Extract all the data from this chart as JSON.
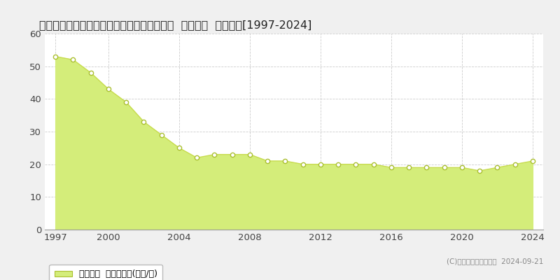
{
  "title": "兵庫県神戸市北区ひよどり台１丁目１１番４  基準地価  地価推移[1997-2024]",
  "years": [
    1997,
    1998,
    1999,
    2000,
    2001,
    2002,
    2003,
    2004,
    2005,
    2006,
    2007,
    2008,
    2009,
    2010,
    2011,
    2012,
    2013,
    2014,
    2015,
    2016,
    2017,
    2018,
    2019,
    2020,
    2021,
    2022,
    2023,
    2024
  ],
  "values": [
    53,
    52,
    48,
    43,
    39,
    33,
    29,
    25,
    22,
    23,
    23,
    23,
    21,
    21,
    20,
    20,
    20,
    20,
    20,
    19,
    19,
    19,
    19,
    19,
    18,
    19,
    20,
    21
  ],
  "fill_color": "#d4ed7a",
  "line_color": "#c8dc50",
  "marker_facecolor": "#ffffff",
  "marker_edgecolor": "#aabf30",
  "fig_bg_color": "#f0f0f0",
  "plot_bg_color": "#ffffff",
  "grid_color": "#cccccc",
  "tick_color": "#444444",
  "title_color": "#222222",
  "ylim": [
    0,
    60
  ],
  "yticks": [
    0,
    10,
    20,
    30,
    40,
    50,
    60
  ],
  "xticks": [
    1997,
    2000,
    2004,
    2008,
    2012,
    2016,
    2020,
    2024
  ],
  "xlim_left": 1996.4,
  "xlim_right": 2024.6,
  "legend_label": "基準地価  平均坪単価(万円/坪)",
  "copyright_text": "(C)土地価格ドットコム  2024-09-21",
  "title_fontsize": 11.5,
  "tick_fontsize": 9.5,
  "legend_fontsize": 9,
  "copyright_fontsize": 7.5
}
